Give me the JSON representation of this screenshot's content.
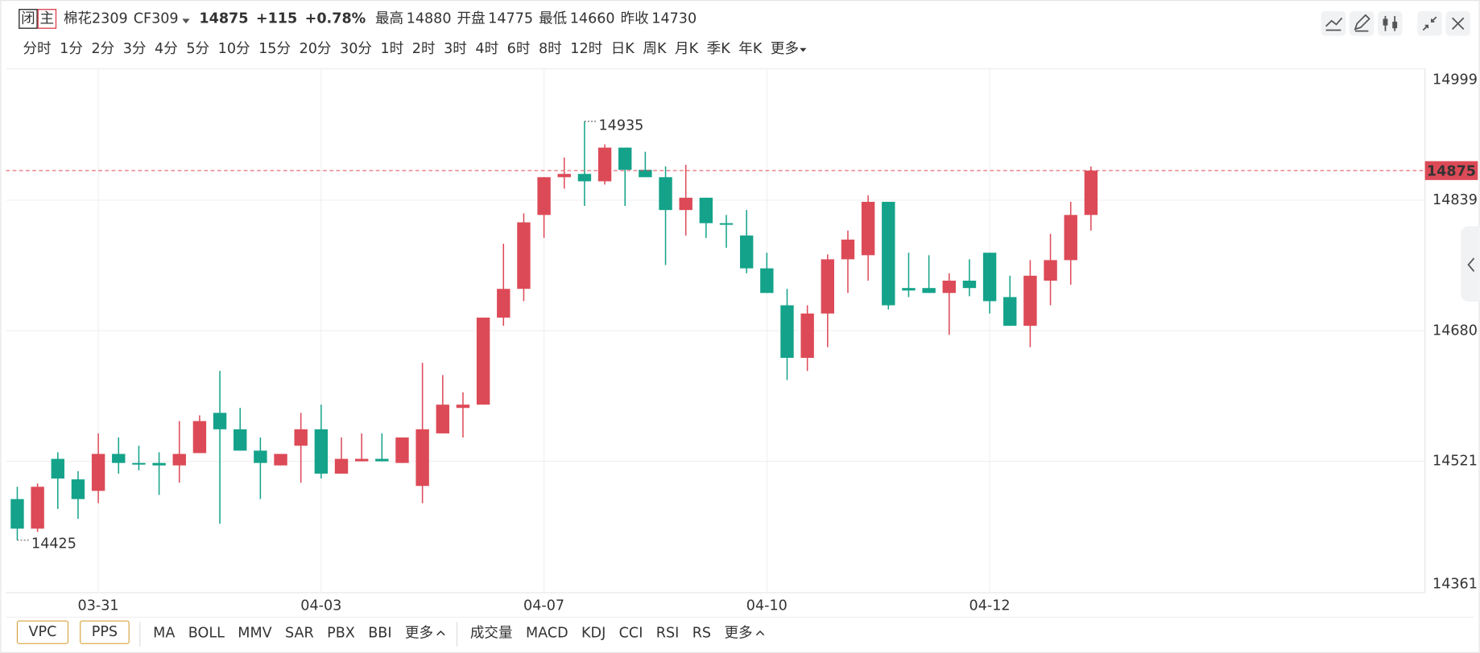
{
  "header": {
    "status": "闭",
    "main": "主",
    "name": "棉花2309",
    "code": "CF309",
    "price": 14875,
    "change": "+115",
    "change_pct": "+0.78%",
    "high_label": "最高",
    "high": 14880,
    "open_label": "开盘",
    "open": 14775,
    "low_label": "最低",
    "low": 14660,
    "prev_close_label": "昨收",
    "prev_close": 14730
  },
  "periods": {
    "items": [
      "分时",
      "1分",
      "2分",
      "3分",
      "4分",
      "5分",
      "10分",
      "15分",
      "20分",
      "30分",
      "1时",
      "2时",
      "3时",
      "4时",
      "6时",
      "8时",
      "12时",
      "日K",
      "周K",
      "月K",
      "季K",
      "年K",
      "更多"
    ],
    "active": 10
  },
  "indicators": {
    "main": [
      "VPC",
      "PPS"
    ],
    "overlay": [
      "MA",
      "BOLL",
      "MMV",
      "SAR",
      "PBX",
      "BBI",
      "更多"
    ],
    "sub": [
      "成交量",
      "MACD",
      "KDJ",
      "CCI",
      "RSI",
      "RS",
      "更多"
    ]
  },
  "chart_data": {
    "type": "candlestick",
    "up_color": "#dd4a57",
    "down_color": "#14a38a",
    "categories": [
      null,
      null,
      null,
      null,
      "03-31",
      null,
      null,
      null,
      null,
      null,
      null,
      null,
      null,
      null,
      null,
      "04-03",
      null,
      null,
      null,
      null,
      null,
      null,
      null,
      null,
      null,
      null,
      "04-07",
      null,
      null,
      null,
      null,
      null,
      null,
      null,
      null,
      null,
      null,
      "04-10",
      null,
      null,
      null,
      null,
      null,
      null,
      null,
      null,
      null,
      null,
      "04-12",
      null,
      null,
      null,
      null,
      null
    ],
    "open": [
      14475,
      14439,
      14524,
      14499,
      14485,
      14530,
      14519,
      14519,
      14516,
      14531,
      14580,
      14560,
      14534,
      14516,
      14540,
      14560,
      14506,
      14521,
      14524,
      14519,
      14491,
      14555,
      14586,
      14590,
      14696,
      14731,
      14821,
      14867,
      14871,
      14862,
      14903,
      14876,
      14867,
      14827,
      14842,
      14811,
      14796,
      14756,
      14711,
      14647,
      14701,
      14767,
      14772,
      14837,
      14732,
      14732,
      14726,
      14741,
      14775,
      14721,
      14686,
      14741,
      14766,
      14821
    ],
    "high": [
      14490,
      14494,
      14532,
      14509,
      14555,
      14550,
      14540,
      14532,
      14570,
      14577,
      14631,
      14586,
      14550,
      14530,
      14580,
      14590,
      14550,
      14555,
      14555,
      14550,
      14641,
      14626,
      14605,
      14696,
      14786,
      14823,
      14867,
      14891,
      14935,
      14907,
      14903,
      14898,
      14880,
      14882,
      14842,
      14821,
      14827,
      14775,
      14731,
      14711,
      14773,
      14802,
      14845,
      14837,
      14775,
      14772,
      14750,
      14767,
      14775,
      14747,
      14766,
      14798,
      14837,
      14880
    ],
    "low": [
      14425,
      14435,
      14463,
      14451,
      14470,
      14506,
      14510,
      14480,
      14495,
      14531,
      14445,
      14534,
      14475,
      14516,
      14495,
      14500,
      14506,
      14521,
      14521,
      14519,
      14470,
      14555,
      14550,
      14590,
      14686,
      14716,
      14793,
      14853,
      14832,
      14858,
      14832,
      14867,
      14760,
      14796,
      14793,
      14781,
      14750,
      14726,
      14620,
      14631,
      14660,
      14726,
      14741,
      14706,
      14721,
      14726,
      14675,
      14722,
      14701,
      14686,
      14660,
      14711,
      14736,
      14802
    ],
    "close": [
      14439,
      14490,
      14500,
      14475,
      14530,
      14519,
      14517,
      14516,
      14530,
      14570,
      14560,
      14534,
      14519,
      14530,
      14560,
      14506,
      14524,
      14524,
      14521,
      14550,
      14560,
      14590,
      14590,
      14696,
      14731,
      14812,
      14867,
      14871,
      14862,
      14903,
      14876,
      14867,
      14827,
      14842,
      14811,
      14809,
      14756,
      14726,
      14647,
      14701,
      14767,
      14791,
      14837,
      14711,
      14729,
      14726,
      14741,
      14732,
      14716,
      14686,
      14747,
      14766,
      14821,
      14875
    ],
    "ylim": [
      14361,
      14999
    ],
    "yticks": [
      14361,
      14521,
      14680,
      14839,
      14999
    ],
    "grid": true,
    "last_price": 14875
  }
}
